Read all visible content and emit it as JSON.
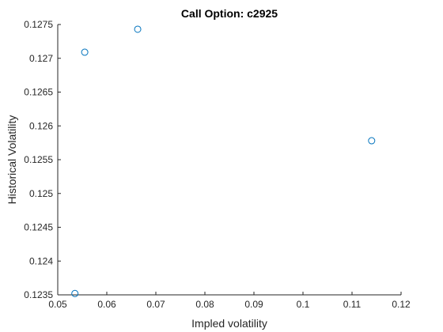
{
  "chart_data": {
    "type": "scatter",
    "title": "Call Option: c2925",
    "xlabel": "Impled volatility",
    "ylabel": "Historical Volatility",
    "xlim": [
      0.05,
      0.12
    ],
    "ylim": [
      0.1235,
      0.1275
    ],
    "x_ticks": [
      0.05,
      0.06,
      0.07,
      0.08,
      0.09,
      0.1,
      0.11,
      0.12
    ],
    "x_tick_labels": [
      "0.05",
      "0.06",
      "0.07",
      "0.08",
      "0.09",
      "0.1",
      "0.11",
      "0.12"
    ],
    "y_ticks": [
      0.1235,
      0.124,
      0.1245,
      0.125,
      0.1255,
      0.126,
      0.1265,
      0.127,
      0.1275
    ],
    "y_tick_labels": [
      "0.1235",
      "0.124",
      "0.1245",
      "0.125",
      "0.1255",
      "0.126",
      "0.1265",
      "0.127",
      "0.1275"
    ],
    "grid": false,
    "marker": "open-circle",
    "marker_color": "#0072BD",
    "points": [
      {
        "x": 0.0535,
        "y": 0.12352
      },
      {
        "x": 0.0555,
        "y": 0.12709
      },
      {
        "x": 0.0663,
        "y": 0.12743
      },
      {
        "x": 0.114,
        "y": 0.12578
      }
    ]
  }
}
